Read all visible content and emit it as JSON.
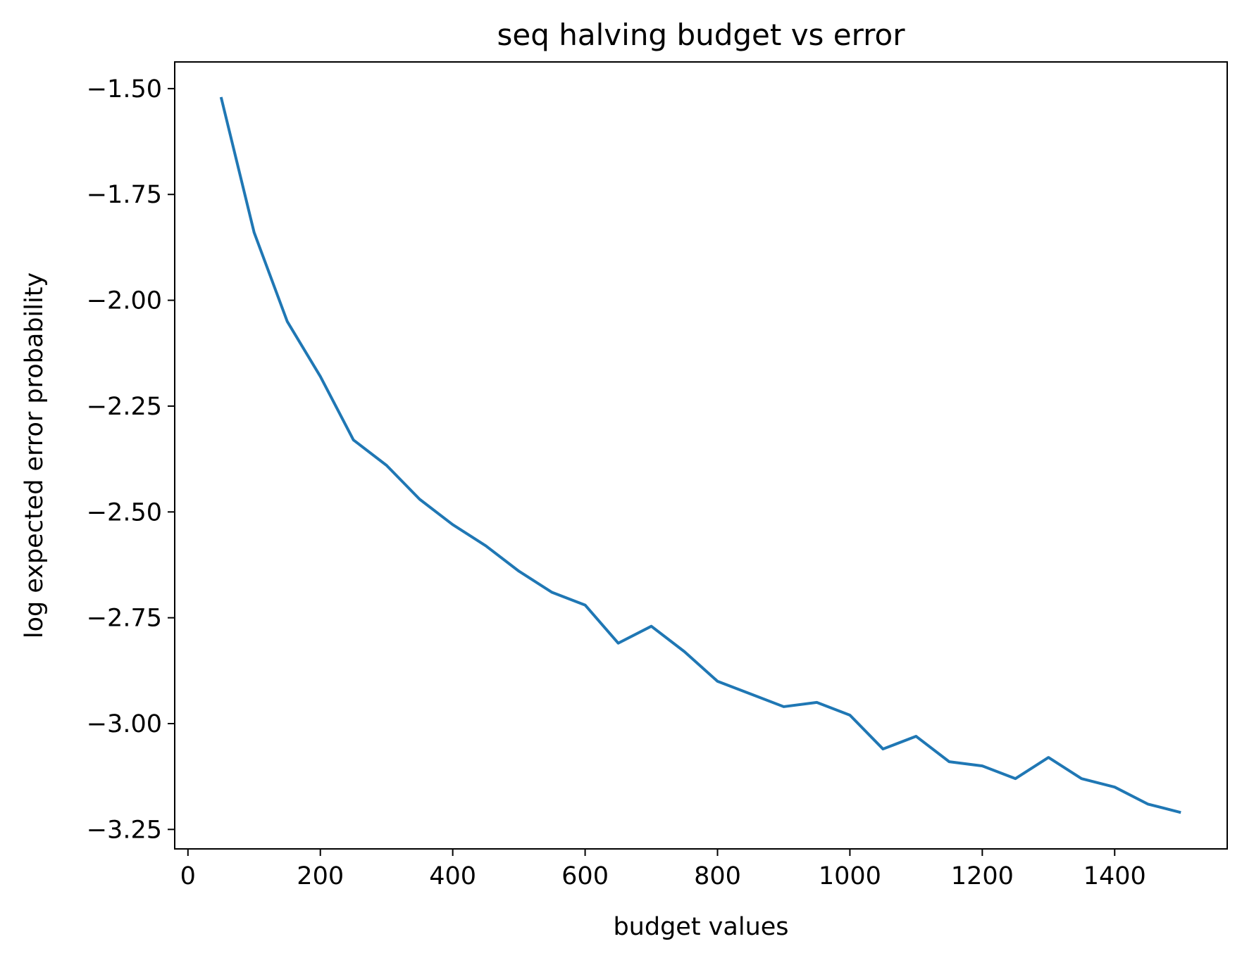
{
  "chart_data": {
    "type": "line",
    "title": "seq halving budget vs error",
    "xlabel": "budget values",
    "ylabel": "log expected error probability",
    "xlim": [
      -20,
      1570
    ],
    "ylim": [
      -3.296,
      -1.437
    ],
    "x_ticks": [
      0,
      200,
      400,
      600,
      800,
      1000,
      1200,
      1400
    ],
    "x_tick_labels": [
      "0",
      "200",
      "400",
      "600",
      "800",
      "1000",
      "1200",
      "1400"
    ],
    "y_ticks": [
      -1.5,
      -1.75,
      -2.0,
      -2.25,
      -2.5,
      -2.75,
      -3.0,
      -3.25
    ],
    "y_tick_labels": [
      "−1.50",
      "−1.75",
      "−2.00",
      "−2.25",
      "−2.50",
      "−2.75",
      "−3.00",
      "−3.25"
    ],
    "grid": false,
    "series": [
      {
        "color": "#1f77b4",
        "x": [
          50,
          100,
          150,
          200,
          250,
          300,
          350,
          400,
          450,
          500,
          550,
          600,
          650,
          700,
          750,
          800,
          850,
          900,
          950,
          1000,
          1050,
          1100,
          1150,
          1200,
          1250,
          1300,
          1350,
          1400,
          1450,
          1500
        ],
        "y": [
          -1.52,
          -1.84,
          -2.05,
          -2.18,
          -2.33,
          -2.39,
          -2.47,
          -2.53,
          -2.58,
          -2.64,
          -2.69,
          -2.72,
          -2.81,
          -2.77,
          -2.83,
          -2.9,
          -2.93,
          -2.96,
          -2.95,
          -2.98,
          -3.06,
          -3.03,
          -3.09,
          -3.1,
          -3.13,
          -3.08,
          -3.13,
          -3.15,
          -3.19,
          -3.21
        ]
      }
    ]
  }
}
